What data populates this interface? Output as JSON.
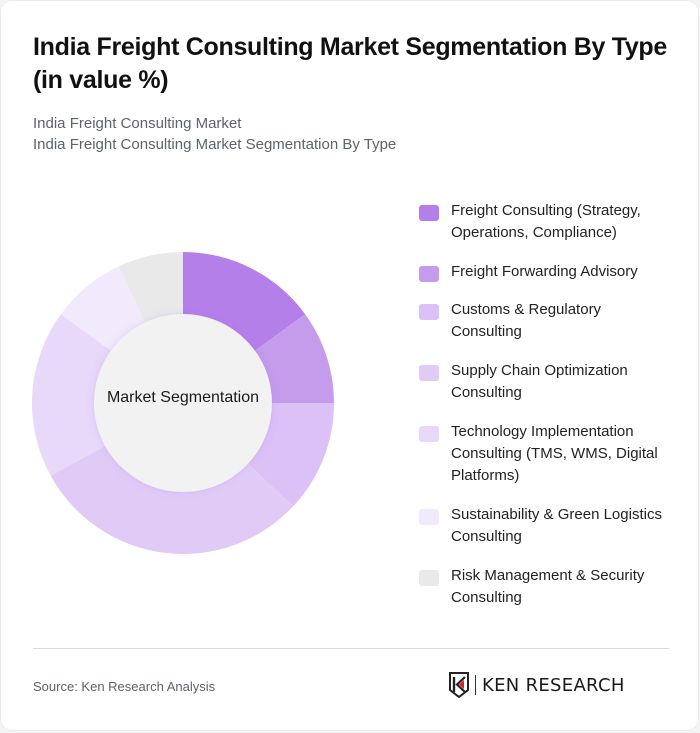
{
  "header": {
    "title": "India Freight Consulting Market Segmentation By Type (in value %)",
    "subtitle_line1": "India Freight Consulting Market",
    "subtitle_line2": "India Freight Consulting Market Segmentation By Type"
  },
  "chart": {
    "center_label": "Market Segmentation"
  },
  "legend": [
    {
      "label": "Freight Consulting (Strategy, Operations, Compliance)",
      "color": "#b57fea"
    },
    {
      "label": "Freight Forwarding Advisory",
      "color": "#c59bec"
    },
    {
      "label": "Customs & Regulatory Consulting",
      "color": "#dbc1f6"
    },
    {
      "label": "Supply Chain Optimization Consulting",
      "color": "#e0cbf7"
    },
    {
      "label": "Technology Implementation Consulting (TMS, WMS, Digital Platforms)",
      "color": "#e8d8fa"
    },
    {
      "label": "Sustainability & Green Logistics Consulting",
      "color": "#f1eafc"
    },
    {
      "label": "Risk Management & Security Consulting",
      "color": "#e9e9e9"
    }
  ],
  "footer": {
    "source": "Source: Ken Research Analysis",
    "logo_text": "KEN RESEARCH",
    "logo_icon": "ken-research-k-shield-icon"
  },
  "chart_data": {
    "type": "pie",
    "subtype": "donut",
    "title": "India Freight Consulting Market Segmentation By Type (in value %)",
    "center_label": "Market Segmentation",
    "categories": [
      "Freight Consulting (Strategy, Operations, Compliance)",
      "Freight Forwarding Advisory",
      "Customs & Regulatory Consulting",
      "Supply Chain Optimization Consulting",
      "Technology Implementation Consulting (TMS, WMS, Digital Platforms)",
      "Sustainability & Green Logistics Consulting",
      "Risk Management & Security Consulting"
    ],
    "values": [
      15,
      10,
      12,
      30,
      18,
      8,
      7
    ],
    "colors": [
      "#b57fea",
      "#c59bec",
      "#dbc1f6",
      "#e0cbf7",
      "#e8d8fa",
      "#f1eafc",
      "#e9e9e9"
    ],
    "start_angle": 0,
    "direction": "clockwise",
    "legend_position": "right",
    "data_labels": false,
    "source": "Source: Ken Research Analysis"
  }
}
